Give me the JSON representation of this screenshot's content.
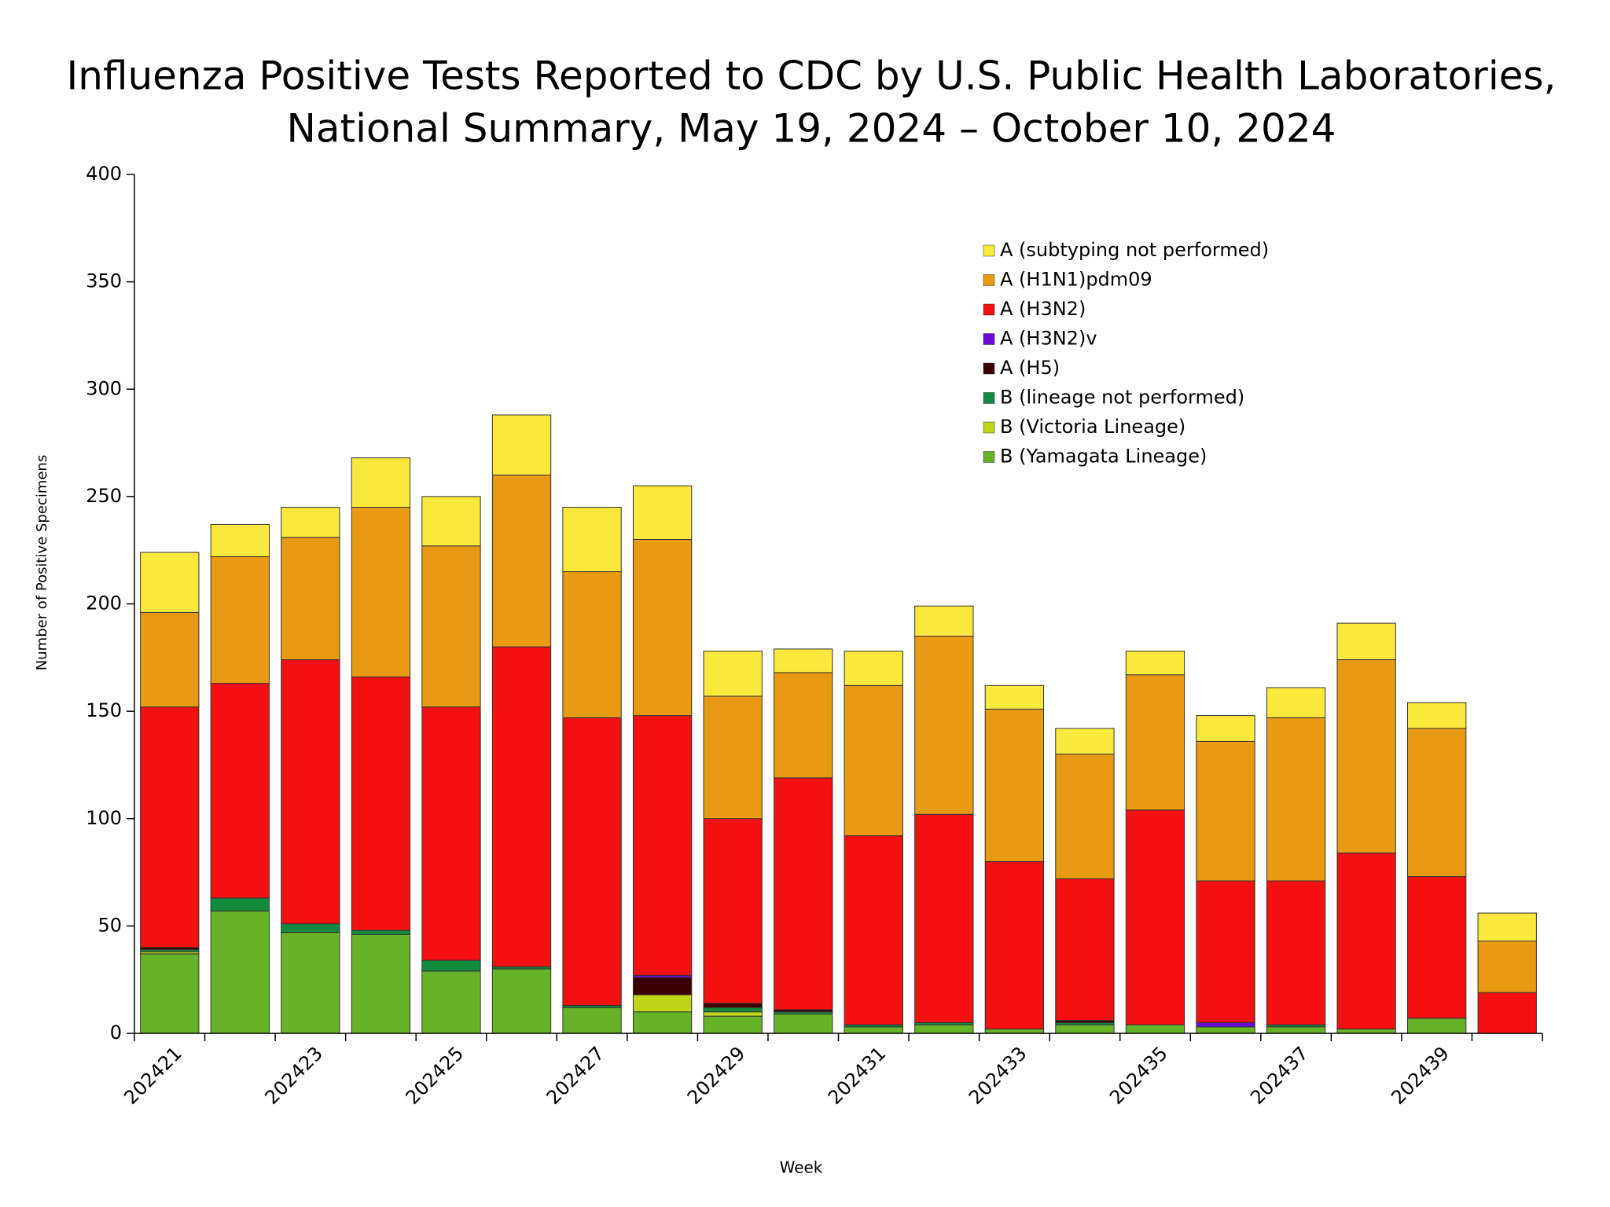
{
  "chart_data": {
    "type": "stacked-bar",
    "title": [
      "Influenza Positive Tests Reported to CDC by U.S. Public Health Laboratories,",
      "National Summary, May 19, 2024 – October 10, 2024"
    ],
    "x_label": "Week",
    "y_label": "Number of Positive Specimens",
    "categories": [
      "202421",
      null,
      "202423",
      null,
      "202425",
      null,
      "202427",
      null,
      "202429",
      null,
      "202431",
      null,
      "202433",
      null,
      "202435",
      null,
      "202437",
      null,
      "202439",
      null
    ],
    "series": [
      {
        "name": "B (Yamagata Lineage)",
        "color": "#66b32a",
        "values": [
          37,
          57,
          47,
          46,
          29,
          30,
          12,
          10,
          8,
          9,
          3,
          4,
          2,
          4,
          4,
          3,
          3,
          2,
          7,
          0
        ]
      },
      {
        "name": "B (Victoria Lineage)",
        "color": "#bfd41a",
        "values": [
          1,
          0,
          0,
          0,
          0,
          0,
          0,
          8,
          2,
          0,
          0,
          0,
          0,
          0,
          0,
          0,
          0,
          0,
          0,
          0
        ]
      },
      {
        "name": "B (lineage not performed)",
        "color": "#138a3e",
        "values": [
          1,
          6,
          4,
          2,
          5,
          1,
          1,
          0,
          2,
          1,
          1,
          1,
          0,
          1,
          0,
          0,
          1,
          0,
          0,
          0
        ]
      },
      {
        "name": "A (H5)",
        "color": "#3d0000",
        "values": [
          1,
          0,
          0,
          0,
          0,
          0,
          0,
          8,
          2,
          1,
          0,
          0,
          0,
          1,
          0,
          0,
          0,
          0,
          0,
          0
        ]
      },
      {
        "name": "A (H3N2)v",
        "color": "#6a0dd6",
        "values": [
          0,
          0,
          0,
          0,
          0,
          0,
          0,
          1,
          0,
          0,
          0,
          0,
          0,
          0,
          0,
          2,
          0,
          0,
          0,
          0
        ]
      },
      {
        "name": "A (H3N2)",
        "color": "#f21010",
        "values": [
          112,
          100,
          123,
          118,
          118,
          149,
          134,
          121,
          86,
          108,
          88,
          97,
          78,
          66,
          100,
          66,
          67,
          82,
          66,
          19
        ]
      },
      {
        "name": "A (H1N1)pdm09",
        "color": "#e99a13",
        "values": [
          44,
          59,
          57,
          79,
          75,
          80,
          68,
          82,
          57,
          49,
          70,
          83,
          71,
          58,
          63,
          65,
          76,
          90,
          69,
          24
        ]
      },
      {
        "name": "A (subtyping not performed)",
        "color": "#fae83d",
        "values": [
          28,
          15,
          14,
          23,
          23,
          28,
          30,
          25,
          21,
          11,
          16,
          14,
          11,
          12,
          11,
          12,
          14,
          17,
          12,
          13
        ]
      }
    ],
    "ylim": [
      0,
      400
    ],
    "yticks": [
      0,
      50,
      100,
      150,
      200,
      250,
      300,
      350,
      400
    ],
    "legend": "upper-right"
  }
}
